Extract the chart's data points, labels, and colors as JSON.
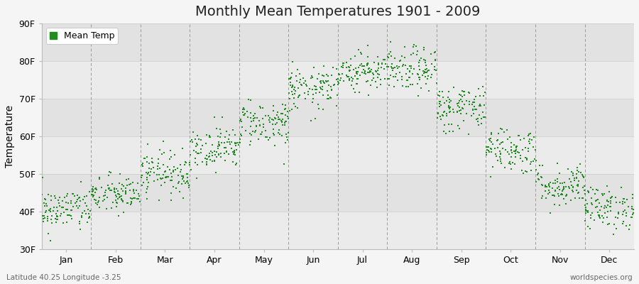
{
  "title": "Monthly Mean Temperatures 1901 - 2009",
  "ylabel": "Temperature",
  "ylim": [
    30,
    90
  ],
  "yticks": [
    30,
    40,
    50,
    60,
    70,
    80,
    90
  ],
  "ytick_labels": [
    "30F",
    "40F",
    "50F",
    "60F",
    "70F",
    "80F",
    "90F"
  ],
  "months": [
    "Jan",
    "Feb",
    "Mar",
    "Apr",
    "May",
    "Jun",
    "Jul",
    "Aug",
    "Sep",
    "Oct",
    "Nov",
    "Dec"
  ],
  "mean_temps_F": [
    40.5,
    44.5,
    50.5,
    57.0,
    63.5,
    72.5,
    77.5,
    77.5,
    67.5,
    56.5,
    47.0,
    41.0
  ],
  "trend_F": [
    2.0,
    1.5,
    2.0,
    2.0,
    2.5,
    2.0,
    2.0,
    2.5,
    2.5,
    2.0,
    2.0,
    2.0
  ],
  "spread_F": [
    2.8,
    2.5,
    2.8,
    2.8,
    3.0,
    2.8,
    2.5,
    2.8,
    3.2,
    3.0,
    2.8,
    2.8
  ],
  "n_years": 109,
  "dot_color": "#228B22",
  "dot_size": 3,
  "bg_light": "#f0f0f0",
  "bg_dark": "#e0e0e0",
  "dashed_line_color": "#999999",
  "title_fontsize": 14,
  "label_fontsize": 10,
  "tick_fontsize": 9,
  "bottom_left_text": "Latitude 40.25 Longitude -3.25",
  "bottom_right_text": "worldspecies.org",
  "legend_label": "Mean Temp"
}
